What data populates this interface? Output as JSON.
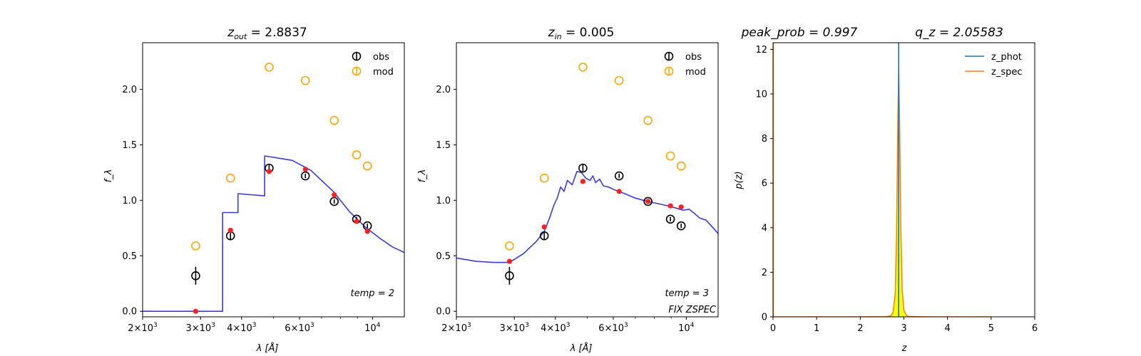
{
  "chart_data": [
    {
      "type": "scatter",
      "title": "z_out = 2.8837",
      "title_main": "z",
      "title_sub": "out",
      "title_rest": " = 2.8837",
      "xlabel": "λ [Å]",
      "ylabel": "f_λ",
      "xscale": "log",
      "xlim": [
        2000,
        12500
      ],
      "ylim": [
        -0.05,
        2.42
      ],
      "xticks": [
        {
          "value": 2000,
          "label": "2×10",
          "exp": "3"
        },
        {
          "value": 3000,
          "label": "3×10",
          "exp": "3"
        },
        {
          "value": 4000,
          "label": "4×10",
          "exp": "3"
        },
        {
          "value": 6000,
          "label": "6×10",
          "exp": "3"
        },
        {
          "value": 10000,
          "label": "10",
          "exp": "4"
        }
      ],
      "yticks": [
        {
          "value": 0.0,
          "label": "0.0"
        },
        {
          "value": 0.5,
          "label": "0.5"
        },
        {
          "value": 1.0,
          "label": "1.0"
        },
        {
          "value": 1.5,
          "label": "1.5"
        },
        {
          "value": 2.0,
          "label": "2.0"
        }
      ],
      "legend": [
        "obs",
        "mod"
      ],
      "legend_position": "top-right",
      "annotation": "temp = 2",
      "annotation2": "",
      "obs": {
        "x": [
          2900,
          3700,
          4850,
          6250,
          7650,
          8950,
          9650
        ],
        "y": [
          0.32,
          0.68,
          1.29,
          1.22,
          0.99,
          0.83,
          0.77
        ],
        "err": [
          0.08,
          0.04,
          0.03,
          0.02,
          0.02,
          0.02,
          0.02
        ]
      },
      "mod": {
        "x": [
          2900,
          3700,
          4850,
          6250,
          7650,
          8950,
          9650
        ],
        "y": [
          0.59,
          1.2,
          2.2,
          2.08,
          1.72,
          1.41,
          1.31
        ]
      },
      "fit": {
        "x": [
          2900,
          3700,
          4850,
          6250,
          7650,
          8950,
          9650
        ],
        "y": [
          0.0,
          0.73,
          1.26,
          1.28,
          1.05,
          0.81,
          0.72
        ]
      },
      "sed": {
        "x": [
          2000,
          3500,
          3500,
          3900,
          3900,
          4700,
          4700,
          5700,
          6500,
          7600,
          8500,
          9500,
          10500,
          11500,
          12500
        ],
        "y": [
          0.0,
          0.0,
          0.89,
          0.89,
          1.06,
          1.04,
          1.4,
          1.36,
          1.27,
          1.08,
          0.9,
          0.76,
          0.66,
          0.58,
          0.53
        ]
      }
    },
    {
      "type": "scatter",
      "title": "z_in = 0.005",
      "title_main": "z",
      "title_sub": "in",
      "title_rest": " = 0.005",
      "xlabel": "λ [Å]",
      "ylabel": "f_λ",
      "xscale": "log",
      "xlim": [
        2000,
        12500
      ],
      "ylim": [
        -0.05,
        2.42
      ],
      "xticks": [
        {
          "value": 2000,
          "label": "2×10",
          "exp": "3"
        },
        {
          "value": 3000,
          "label": "3×10",
          "exp": "3"
        },
        {
          "value": 4000,
          "label": "4×10",
          "exp": "3"
        },
        {
          "value": 6000,
          "label": "6×10",
          "exp": "3"
        },
        {
          "value": 10000,
          "label": "10",
          "exp": "4"
        }
      ],
      "yticks": [
        {
          "value": 0.0,
          "label": "0.0"
        },
        {
          "value": 0.5,
          "label": "0.5"
        },
        {
          "value": 1.0,
          "label": "1.0"
        },
        {
          "value": 1.5,
          "label": "1.5"
        },
        {
          "value": 2.0,
          "label": "2.0"
        }
      ],
      "legend": [
        "obs",
        "mod"
      ],
      "legend_position": "top-right",
      "annotation": "temp = 3",
      "annotation2": "FIX ZSPEC",
      "obs": {
        "x": [
          2900,
          3700,
          4850,
          6250,
          7650,
          8950,
          9650
        ],
        "y": [
          0.32,
          0.68,
          1.29,
          1.22,
          0.99,
          0.83,
          0.77
        ],
        "err": [
          0.08,
          0.04,
          0.03,
          0.02,
          0.02,
          0.02,
          0.02
        ]
      },
      "mod": {
        "x": [
          2900,
          3700,
          4850,
          6250,
          7650,
          8950,
          9650
        ],
        "y": [
          0.59,
          1.2,
          2.2,
          2.08,
          1.72,
          1.4,
          1.31
        ]
      },
      "fit": {
        "x": [
          2900,
          3700,
          4850,
          6250,
          7650,
          8950,
          9650
        ],
        "y": [
          0.45,
          0.76,
          1.17,
          1.08,
          0.99,
          0.95,
          0.94
        ]
      },
      "sed": {
        "x": [
          2000,
          2300,
          2600,
          2900,
          3200,
          3500,
          3700,
          3850,
          3950,
          4050,
          4150,
          4250,
          4350,
          4500,
          4650,
          4800,
          4950,
          5100,
          5200,
          5300,
          5450,
          5600,
          5800,
          6100,
          6500,
          7000,
          7600,
          8200,
          8800,
          9300,
          9800,
          10200,
          10600,
          11000,
          11500,
          12000,
          12500
        ],
        "y": [
          0.48,
          0.45,
          0.44,
          0.44,
          0.52,
          0.63,
          0.72,
          0.85,
          0.95,
          1.02,
          1.12,
          1.08,
          1.18,
          1.14,
          1.26,
          1.25,
          1.2,
          1.18,
          1.22,
          1.16,
          1.19,
          1.13,
          1.12,
          1.09,
          1.06,
          1.02,
          0.99,
          0.97,
          0.95,
          0.93,
          0.91,
          0.92,
          0.88,
          0.84,
          0.82,
          0.76,
          0.7
        ]
      }
    },
    {
      "type": "line",
      "title": "peak_prob = 0.997      q_z = 2.05583",
      "title_left": "peak_prob = 0.997",
      "title_right": "q_z = 2.05583",
      "xlabel": "z",
      "ylabel": "p(z)",
      "xlim": [
        0,
        6
      ],
      "ylim": [
        0,
        12.3
      ],
      "xticks": [
        {
          "value": 0,
          "label": "0"
        },
        {
          "value": 1,
          "label": "1"
        },
        {
          "value": 2,
          "label": "2"
        },
        {
          "value": 3,
          "label": "3"
        },
        {
          "value": 4,
          "label": "4"
        },
        {
          "value": 5,
          "label": "5"
        },
        {
          "value": 6,
          "label": "6"
        }
      ],
      "yticks": [
        {
          "value": 0,
          "label": "0"
        },
        {
          "value": 2,
          "label": "2"
        },
        {
          "value": 4,
          "label": "4"
        },
        {
          "value": 6,
          "label": "6"
        },
        {
          "value": 8,
          "label": "8"
        },
        {
          "value": 10,
          "label": "10"
        },
        {
          "value": 12,
          "label": "12"
        }
      ],
      "legend": [
        "z_phot",
        "z_spec"
      ],
      "legend_position": "top-right",
      "z_phot": 2.88,
      "z_spec": 0.005,
      "pz": {
        "x": [
          0.0,
          2.0,
          2.6,
          2.7,
          2.75,
          2.8,
          2.83,
          2.86,
          2.88,
          2.9,
          2.93,
          2.96,
          3.0,
          3.05,
          3.1,
          3.5,
          5.0
        ],
        "y": [
          0.0,
          0.0,
          0.01,
          0.05,
          0.2,
          1.0,
          3.5,
          8.5,
          11.2,
          9.0,
          4.0,
          1.2,
          0.3,
          0.08,
          0.02,
          0.0,
          0.0
        ]
      }
    }
  ],
  "colors": {
    "obs": "#000000",
    "mod": "#ffa500",
    "fit": "#ff2020",
    "sed": "#3a3ae8",
    "z_phot": "#1f77b4",
    "z_spec": "#ff7f0e",
    "pz_fill": "#ffff00"
  }
}
